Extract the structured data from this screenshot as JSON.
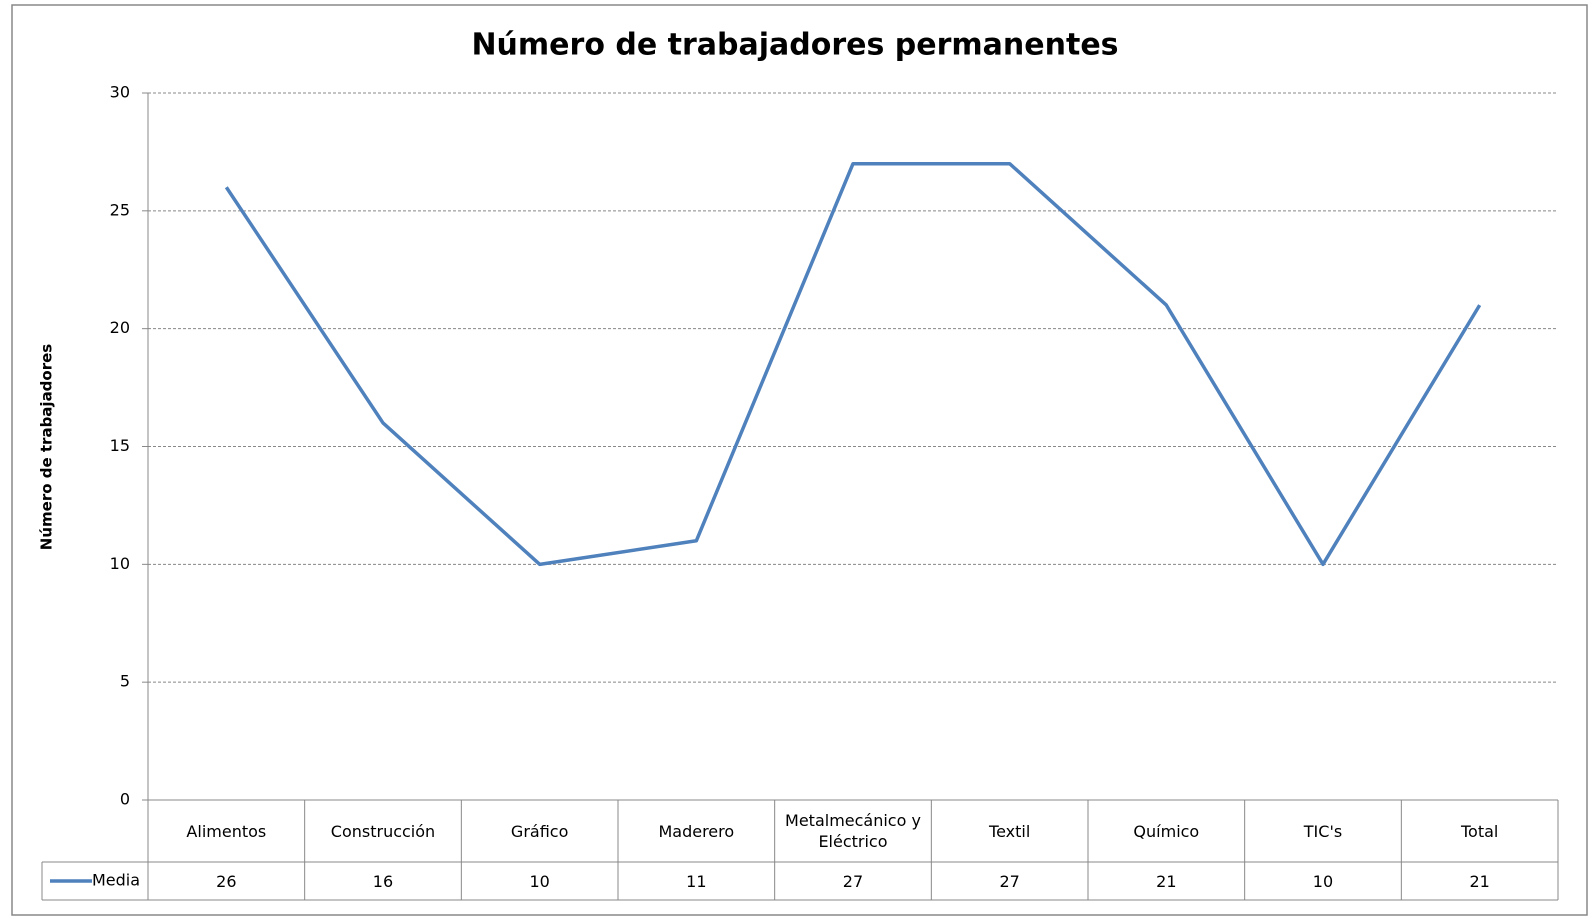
{
  "chart_data": {
    "type": "line",
    "title": "Número de trabajadores permanentes",
    "y_label": "Número de trabajadores",
    "categories": [
      "Alimentos",
      "Construcción",
      "Gráfico",
      "Maderero",
      "Metalmecánico y Eléctrico",
      "Textil",
      "Químico",
      "TIC's",
      "Total"
    ],
    "series": [
      {
        "name": "Media",
        "color": "#4f81bd",
        "values": [
          26,
          16,
          10,
          11,
          27,
          27,
          21,
          10,
          21
        ]
      }
    ],
    "ylim": [
      0,
      30
    ],
    "yticks": [
      0,
      5,
      10,
      15,
      20,
      25,
      30
    ],
    "grid": true,
    "data_table": true
  }
}
